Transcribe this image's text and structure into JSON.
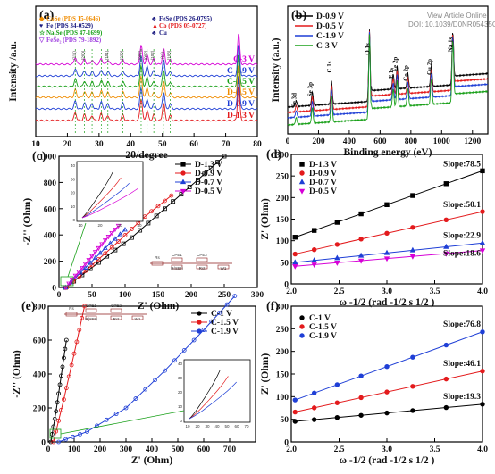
{
  "watermark": {
    "line1": "View Article Online",
    "line2": "DOI: 10.1039/D0NR05435G"
  },
  "colors": {
    "black": "#000000",
    "red": "#e31a1c",
    "blue": "#1f3fd6",
    "magenta": "#d600d6",
    "green": "#19a019",
    "orange": "#f08c00",
    "purple": "#a040e0",
    "navy": "#1a1a80"
  },
  "chart_data": [
    {
      "id": "a",
      "type": "line",
      "label": "(a)",
      "xlabel": "2θ/degree",
      "ylabel": "Intensity /a.u.",
      "xlim": [
        10,
        80
      ],
      "xticks": [
        10,
        20,
        30,
        40,
        50,
        60,
        70,
        80
      ],
      "legend": [
        {
          "symbol": "◆",
          "text": "CoSe (PDS 15-0646)",
          "color": "#f08c00"
        },
        {
          "symbol": "♥",
          "text": "Fe (PDS 34-0529)",
          "color": "#1a1a80"
        },
        {
          "symbol": "☆",
          "text": "Na₂Se (PDS 47-1699)",
          "color": "#19a019"
        },
        {
          "symbol": "▽",
          "text": "FeSe₂ (PDS 79-1892)",
          "color": "#a040e0"
        },
        {
          "symbol": "♣",
          "text": "FeSe (PDS 26-0795)",
          "color": "#1a1a80"
        },
        {
          "symbol": "▲",
          "text": "Co (PDS 05-0727)",
          "color": "#e31a1c"
        },
        {
          "symbol": "♣",
          "text": "Cu",
          "color": "#1a1a80"
        }
      ],
      "annotations": [
        "(111)",
        "(200)",
        "(220)",
        "(002)",
        "(101)",
        "(102)",
        "(002)",
        "(11)",
        "(103)"
      ],
      "peaks": [
        22.5,
        25.4,
        27.8,
        30.7,
        32.8,
        37.5,
        43.3,
        45.2,
        47.3,
        50.4,
        52.5,
        74.1
      ],
      "series": [
        {
          "name": "C-3 V",
          "color": "#d600d6"
        },
        {
          "name": "C-1.9 V",
          "color": "#1f3fd6"
        },
        {
          "name": "C-1.5 V",
          "color": "#19a019"
        },
        {
          "name": "D-0.5 V",
          "color": "#f08c00"
        },
        {
          "name": "D-0.9 V",
          "color": "#1f3fd6"
        },
        {
          "name": "D-1.3 V",
          "color": "#e31a1c"
        }
      ]
    },
    {
      "id": "b",
      "type": "line",
      "label": "(b)",
      "xlabel": "Binding energy (eV)",
      "ylabel": "Intensity (a.u.)",
      "xlim": [
        0,
        1300
      ],
      "xticks": [
        0,
        200,
        400,
        600,
        800,
        1000,
        1200
      ],
      "annotations": [
        {
          "text": "Se 3d",
          "x": 55
        },
        {
          "text": "Se 3p",
          "x": 160
        },
        {
          "text": "C 1s",
          "x": 285
        },
        {
          "text": "O 1s",
          "x": 531
        },
        {
          "text": "Fe 2p",
          "x": 711
        },
        {
          "text": "Co 2p",
          "x": 780
        },
        {
          "text": "F 1s",
          "x": 685
        },
        {
          "text": "Cu 2p",
          "x": 933
        },
        {
          "text": "Na 1s",
          "x": 1072
        }
      ],
      "series": [
        {
          "name": "D-0.9 V",
          "color": "#000000"
        },
        {
          "name": "D-0.5 V",
          "color": "#e31a1c"
        },
        {
          "name": "C-1.9 V",
          "color": "#1f3fd6"
        },
        {
          "name": "C-3 V",
          "color": "#19a019"
        }
      ]
    },
    {
      "id": "c",
      "type": "scatter",
      "label": "(c)",
      "xlabel": "Z' (Ohm)",
      "ylabel": "-Z'' (Ohm)",
      "xlim": [
        0,
        300
      ],
      "ylim": [
        0,
        1000
      ],
      "xticks": [
        0,
        50,
        100,
        150,
        200,
        250,
        300
      ],
      "yticks": [
        0,
        200,
        400,
        600,
        800,
        1000
      ],
      "series": [
        {
          "name": "D-1.3 V",
          "color": "#000000",
          "marker": "square",
          "x": [
            10,
            60,
            110,
            160,
            210,
            250
          ],
          "y": [
            0,
            190,
            380,
            600,
            820,
            1000
          ]
        },
        {
          "name": "D-0.9 V",
          "color": "#e31a1c",
          "marker": "circle",
          "x": [
            12,
            50,
            90,
            130,
            170
          ],
          "y": [
            0,
            170,
            350,
            540,
            700
          ]
        },
        {
          "name": "D-0.7 V",
          "color": "#1f3fd6",
          "marker": "triangle",
          "x": [
            10,
            40,
            70,
            100
          ],
          "y": [
            0,
            150,
            300,
            440
          ]
        },
        {
          "name": "D-0.5 V",
          "color": "#d600d6",
          "marker": "triangle-down",
          "x": [
            10,
            30,
            50,
            70,
            90
          ],
          "y": [
            0,
            120,
            240,
            360,
            470
          ]
        }
      ],
      "inset": {
        "xticks": [
          10,
          20,
          30,
          40
        ],
        "yticks": [
          0,
          10,
          20,
          30,
          40
        ]
      },
      "circuit": [
        "Rs",
        "CPE1",
        "R(SEI)",
        "CPE2",
        "Rct",
        "W1"
      ]
    },
    {
      "id": "d",
      "type": "scatter",
      "label": "(d)",
      "xlabel": "ω  -1/2  (rad  -1/2  s  1/2 )",
      "ylabel": "Z' (Ohm)",
      "xlim": [
        2.0,
        4.0
      ],
      "ylim": [
        0,
        300
      ],
      "xticks": [
        2.0,
        2.5,
        3.0,
        3.5,
        4.0
      ],
      "yticks": [
        0,
        50,
        100,
        150,
        200,
        250,
        300
      ],
      "x": [
        2.04,
        2.24,
        2.48,
        2.73,
        3.0,
        3.27,
        3.62,
        4.0
      ],
      "series": [
        {
          "name": "D-1.3 V",
          "color": "#000000",
          "marker": "square",
          "slope": "Slope:78.5",
          "intercept": -52
        },
        {
          "name": "D-0.9 V",
          "color": "#e31a1c",
          "marker": "circle",
          "slope": "Slope:50.1",
          "intercept": -33
        },
        {
          "name": "D-0.7 V",
          "color": "#1f3fd6",
          "marker": "triangle",
          "slope": "Slope:22.9",
          "intercept": 3
        },
        {
          "name": "D-0.5 V",
          "color": "#d600d6",
          "marker": "triangle-down",
          "slope": "Slope:18.6",
          "intercept": 3
        }
      ]
    },
    {
      "id": "e",
      "type": "scatter",
      "label": "(e)",
      "xlabel": "Z' (Ohm)",
      "ylabel": "-Z'' (Ohm)",
      "xlim": [
        0,
        800
      ],
      "ylim": [
        0,
        800
      ],
      "xticks": [
        0,
        100,
        200,
        300,
        400,
        500,
        600,
        700
      ],
      "yticks": [
        0,
        200,
        400,
        600,
        800
      ],
      "series": [
        {
          "name": "C-1 V",
          "color": "#000000",
          "marker": "circle",
          "x": [
            10,
            30,
            50,
            70
          ],
          "y": [
            0,
            180,
            390,
            600
          ]
        },
        {
          "name": "C-1.5 V",
          "color": "#e31a1c",
          "marker": "circle",
          "x": [
            20,
            60,
            100,
            140
          ],
          "y": [
            0,
            250,
            520,
            800
          ]
        },
        {
          "name": "C-1.9 V",
          "color": "#1f3fd6",
          "marker": "circle",
          "x": [
            40,
            150,
            300,
            450,
            600,
            720
          ],
          "y": [
            0,
            60,
            200,
            420,
            660,
            860
          ]
        }
      ],
      "inset": {
        "xticks": [
          10,
          20,
          30,
          40,
          50,
          60,
          70
        ],
        "yticks": [
          0,
          10,
          20,
          30,
          40
        ]
      },
      "circuit": [
        "Rs",
        "CPE1",
        "R(SEI)",
        "CPE2",
        "Rct",
        "W1"
      ]
    },
    {
      "id": "f",
      "type": "scatter",
      "label": "(f)",
      "xlabel": "ω  -1/2  (rad  -1/2  s  1/2 )",
      "ylabel": "Z' (Ohm)",
      "xlim": [
        2.0,
        4.0
      ],
      "ylim": [
        0,
        300
      ],
      "xticks": [
        2.0,
        2.5,
        3.0,
        3.5,
        4.0
      ],
      "yticks": [
        0,
        50,
        100,
        150,
        200,
        250,
        300
      ],
      "x": [
        2.04,
        2.24,
        2.48,
        2.73,
        3.0,
        3.27,
        3.62,
        4.0
      ],
      "series": [
        {
          "name": "C-1 V",
          "color": "#000000",
          "marker": "circle",
          "slope": "Slope:19.3",
          "intercept": 6
        },
        {
          "name": "C-1.5 V",
          "color": "#e31a1c",
          "marker": "circle",
          "slope": "Slope:46.1",
          "intercept": -28
        },
        {
          "name": "C-1.9 V",
          "color": "#1f3fd6",
          "marker": "circle",
          "slope": "Slope:76.8",
          "intercept": -64
        }
      ]
    }
  ]
}
